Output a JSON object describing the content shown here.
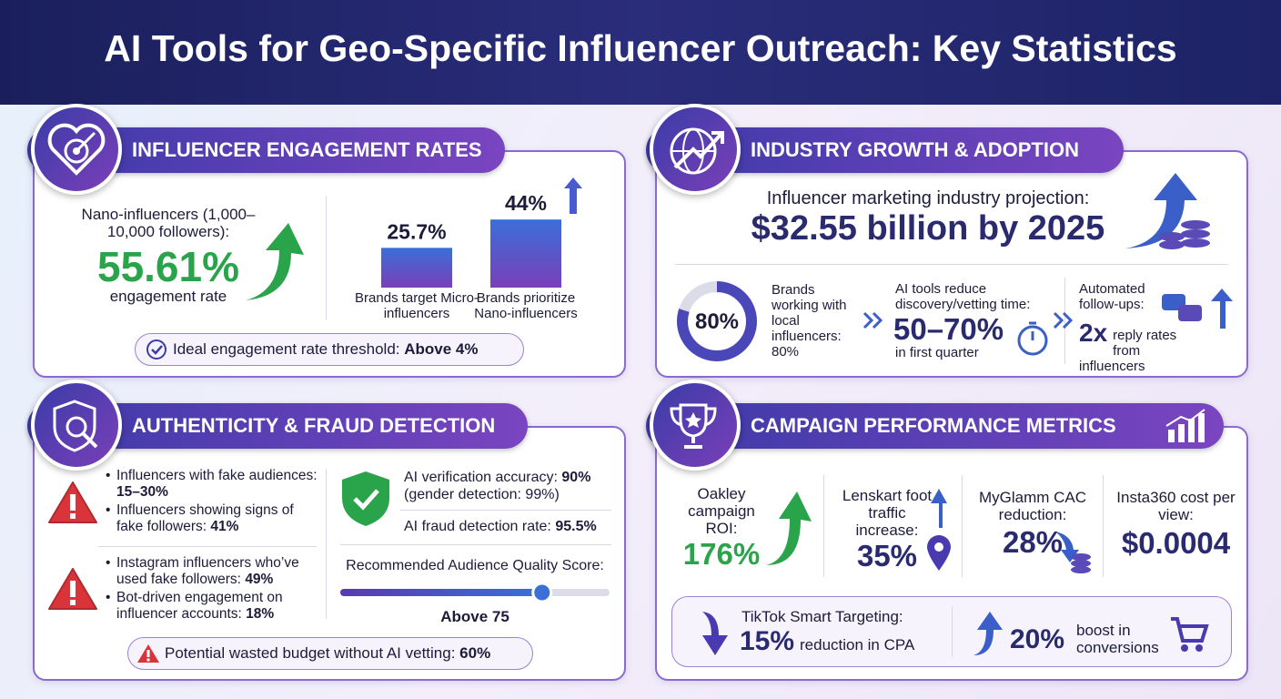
{
  "title": "AI Tools for Geo-Specific Influencer Outreach: Key Statistics",
  "engagement": {
    "heading": "INFLUENCER ENGAGEMENT RATES",
    "nano_label": "Nano-influencers (1,000–10,000 followers):",
    "nano_value": "55.61%",
    "nano_caption": "engagement rate",
    "bars": [
      {
        "value": 25.7,
        "value_label": "25.7%",
        "caption": "Brands target Micro-influencers"
      },
      {
        "value": 44,
        "value_label": "44%",
        "caption": "Brands prioritize Nano-influencers"
      }
    ],
    "threshold_label": "Ideal engagement rate threshold:",
    "threshold_value": "Above 4%"
  },
  "growth": {
    "heading": "INDUSTRY GROWTH & ADOPTION",
    "projection_label": "Influencer marketing industry projection:",
    "projection_value": "$32.55 billion by 2025",
    "donut": {
      "value": 80,
      "value_label": "80%"
    },
    "local_text": "Brands working with local influencers: 80%",
    "ai_label": "AI tools reduce discovery/vetting time:",
    "ai_value": "50–70%",
    "ai_caption": "in first quarter",
    "followup_label": "Automated follow-ups:",
    "followup_value": "2x",
    "followup_caption": "reply rates from influencers"
  },
  "fraud": {
    "heading": "AUTHENTICITY & FRAUD DETECTION",
    "group1": [
      {
        "label": "Influencers with fake audiences:",
        "value": "15–30%"
      },
      {
        "label": "Influencers showing signs of fake followers:",
        "value": "41%"
      }
    ],
    "group2": [
      {
        "label": "Instagram influencers who’ve used fake followers:",
        "value": "49%"
      },
      {
        "label": "Bot-driven engagement on influencer accounts:",
        "value": "18%"
      }
    ],
    "verification_label": "AI verification accuracy:",
    "verification_value": "90%",
    "verification_note": "(gender detection: 99%)",
    "detection_label": "AI fraud detection rate:",
    "detection_value": "95.5%",
    "quality_label": "Recommended Audience Quality Score:",
    "quality": {
      "value": 75,
      "value_label": "Above 75"
    },
    "wasted_label": "Potential wasted budget without AI vetting:",
    "wasted_value": "60%"
  },
  "campaign": {
    "heading": "CAMPAIGN PERFORMANCE METRICS",
    "metrics": [
      {
        "label": "Oakley campaign ROI:",
        "value": "176%"
      },
      {
        "label": "Lenskart foot traffic increase:",
        "value": "35%"
      },
      {
        "label": "MyGlamm CAC reduction:",
        "value": "28%"
      },
      {
        "label": "Insta360 cost per view:",
        "value": "$0.0004"
      }
    ],
    "tiktok_label": "TikTok Smart Targeting:",
    "tiktok_value": "15%",
    "tiktok_caption": "reduction in CPA",
    "boost_value": "20%",
    "boost_caption": "boost in conversions"
  }
}
